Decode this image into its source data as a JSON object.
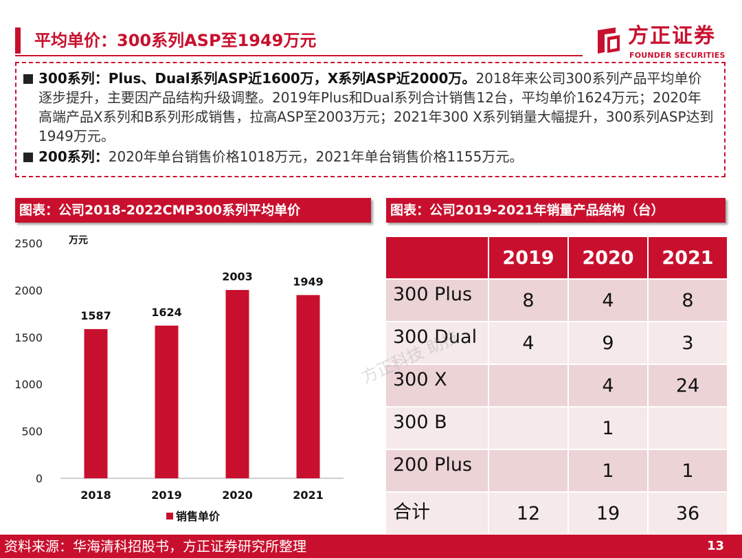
{
  "header": {
    "title": "平均单价：300系列ASP至1949万元",
    "logo_cn": "方正证券",
    "logo_en": "FOUNDER SECURITIES"
  },
  "summary": {
    "bullet1_bold": "300系列：Plus、Dual系列ASP近1600万，X系列ASP近2000万。",
    "bullet1_text": "2018年来公司300系列产品平均单价逐步提升，主要因产品结构升级调整。2019年Plus和Dual系列合计销售12台，平均单价1624万元；2020年高端产品X系列和B系列形成销售，拉高ASP至2003万元；2021年300 X系列销量大幅提升，300系列ASP达到1949万元。",
    "bullet2_bold": "200系列：",
    "bullet2_text": "2020年单台销售价格1018万元，2021年单台销售价格1155万元。"
  },
  "left_section": {
    "title": "图表：公司2018-2022CMP300系列平均单价"
  },
  "right_section": {
    "title": "图表：公司2019-2021年销量产品结构（台）"
  },
  "chart_data": {
    "type": "bar",
    "title": "",
    "categories": [
      "2018",
      "2019",
      "2020",
      "2021"
    ],
    "series": [
      {
        "name": "销售单价",
        "values": [
          1587,
          1624,
          2003,
          1949
        ]
      }
    ],
    "unit_label": "万元",
    "xlabel": "",
    "ylabel": "",
    "ylim": [
      0,
      2500
    ],
    "yticks": [
      0,
      500,
      1000,
      1500,
      2000,
      2500
    ],
    "grid": false,
    "legend": "bottom",
    "bar_color": "#c8102e"
  },
  "table": {
    "headers": [
      "",
      "2019",
      "2020",
      "2021"
    ],
    "rows": [
      [
        "300 Plus",
        "8",
        "4",
        "8"
      ],
      [
        "300 Dual",
        "4",
        "9",
        "3"
      ],
      [
        "300 X",
        "",
        "4",
        "24"
      ],
      [
        "300 B",
        "",
        "1",
        ""
      ],
      [
        "200 Plus",
        "",
        "1",
        "1"
      ],
      [
        "合计",
        "12",
        "19",
        "36"
      ]
    ]
  },
  "watermark": "方正科技 助技",
  "footer": {
    "source": "资料来源：华海清科招股书，方正证券研究所整理",
    "page": "13"
  },
  "colors": {
    "brand_red": "#c8102e",
    "table_shade": "#ecd3d6",
    "table_plain": "#f5e9ea"
  }
}
